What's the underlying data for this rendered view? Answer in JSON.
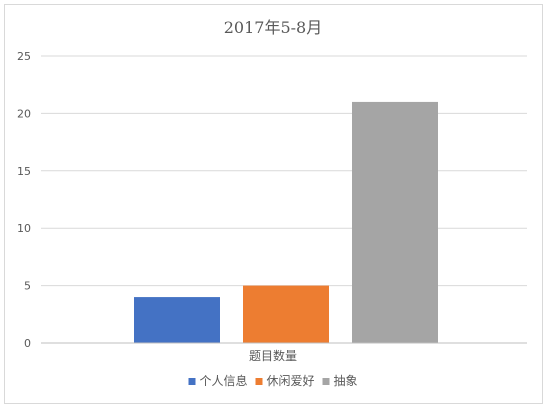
{
  "chart_data": {
    "type": "bar",
    "title": "2017年5-8月",
    "categories": [
      "题目数量"
    ],
    "series": [
      {
        "name": "个人信息",
        "values": [
          4
        ],
        "color": "#4472c4"
      },
      {
        "name": "休闲爱好",
        "values": [
          5
        ],
        "color": "#ed7d31"
      },
      {
        "name": "抽象",
        "values": [
          21
        ],
        "color": "#a5a5a5"
      }
    ],
    "xlabel": "",
    "ylabel": "",
    "ylim": [
      0,
      25
    ],
    "yticks": [
      0,
      5,
      10,
      15,
      20,
      25
    ],
    "grid": true,
    "legend_position": "bottom"
  }
}
